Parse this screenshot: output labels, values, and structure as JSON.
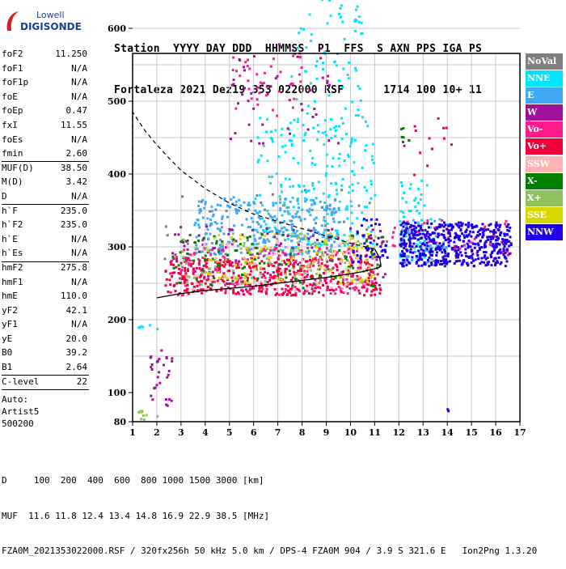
{
  "logo": {
    "line1": "Lowell",
    "line2": "DIGISONDE"
  },
  "header": {
    "labels": [
      "Station",
      "YYYY DAY",
      "DDD",
      "HHMMSS",
      "P1",
      "FFS",
      "S",
      "AXN",
      "PPS",
      "IGA",
      "PS"
    ],
    "values": [
      "Fortaleza",
      "2021 Dez19",
      "353",
      "022000",
      "RSF",
      "1",
      "714",
      "100",
      "10+",
      "11"
    ]
  },
  "parameters": [
    {
      "name": "foF2",
      "value": "11.250"
    },
    {
      "name": "foF1",
      "value": "N/A"
    },
    {
      "name": "foF1p",
      "value": "N/A"
    },
    {
      "name": "foE",
      "value": "N/A"
    },
    {
      "name": "foEp",
      "value": "0.47"
    },
    {
      "name": "fxI",
      "value": "11.55"
    },
    {
      "name": "foEs",
      "value": "N/A"
    },
    {
      "name": "fmin",
      "value": "2.60"
    },
    {
      "name": "MUF(D)",
      "value": "38.50"
    },
    {
      "name": "M(D)",
      "value": "3.42"
    },
    {
      "name": "D",
      "value": "N/A"
    },
    {
      "name": "h`F",
      "value": "235.0"
    },
    {
      "name": "h`F2",
      "value": "235.0"
    },
    {
      "name": "h`E",
      "value": "N/A"
    },
    {
      "name": "h`Es",
      "value": "N/A"
    },
    {
      "name": "hmF2",
      "value": "275.8"
    },
    {
      "name": "hmF1",
      "value": "N/A"
    },
    {
      "name": "hmE",
      "value": "110.0"
    },
    {
      "name": "yF2",
      "value": "42.1"
    },
    {
      "name": "yF1",
      "value": "N/A"
    },
    {
      "name": "yE",
      "value": "20.0"
    },
    {
      "name": "B0",
      "value": "39.2"
    },
    {
      "name": "B1",
      "value": "2.64"
    },
    {
      "name": "C-level",
      "value": "22"
    }
  ],
  "auto": [
    "Auto:",
    "Artist5",
    "500200"
  ],
  "legend": [
    {
      "label": "NoVal",
      "color": "#7f7f7f"
    },
    {
      "label": "NNE",
      "color": "#00e5ff"
    },
    {
      "label": "E",
      "color": "#3fa9f5"
    },
    {
      "label": "W",
      "color": "#a0109a"
    },
    {
      "label": "Vo-",
      "color": "#ff1b8c"
    },
    {
      "label": "Vo+",
      "color": "#f0003a"
    },
    {
      "label": "SSW",
      "color": "#ffb3b3"
    },
    {
      "label": "X-",
      "color": "#007f00"
    },
    {
      "label": "X+",
      "color": "#8fc25f"
    },
    {
      "label": "SSE",
      "color": "#d8d800"
    },
    {
      "label": "NNW",
      "color": "#1f00e6"
    }
  ],
  "footer": {
    "dist_label": "D",
    "dist_values": [
      "100",
      "200",
      "400",
      "600",
      "800",
      "1000",
      "1500",
      "3000"
    ],
    "dist_unit": "[km]",
    "muf_label": "MUF",
    "muf_values": [
      "11.6",
      "11.8",
      "12.4",
      "13.4",
      "14.8",
      "16.9",
      "22.9",
      "38.5"
    ],
    "muf_unit": "[MHz]",
    "info": "FZA0M_2021353022000.RSF / 320fx256h 50 kHz 5.0 km / DPS-4 FZA0M 904 / 3.9 S 321.6 E   Ion2Png 1.3.20"
  },
  "chart_data": {
    "type": "scatter",
    "x_ticks": [
      "1",
      "2",
      "3",
      "4",
      "5",
      "6",
      "7",
      "8",
      "9",
      "10",
      "11",
      "12",
      "13",
      "14",
      "15",
      "16",
      "17"
    ],
    "y_ticks": [
      "80",
      "100",
      "200",
      "300",
      "400",
      "500",
      "600",
      "700",
      "800",
      "900"
    ],
    "xlim": [
      1,
      17
    ],
    "ylim": [
      80,
      900
    ],
    "grid": true,
    "legend_position": "right",
    "profile": {
      "x": [
        2.0,
        3.0,
        4.0,
        5.0,
        6.0,
        7.0,
        8.0,
        9.0,
        10.0,
        10.5,
        11.0,
        11.2,
        11.25,
        11.2,
        11.0
      ],
      "y": [
        230,
        236,
        240,
        243,
        246,
        250,
        254,
        258,
        263,
        266,
        270,
        272,
        276,
        285,
        297
      ]
    },
    "extrapolation": {
      "x": [
        1.0,
        1.0,
        1.5,
        2.0,
        2.5,
        3.0,
        4.0,
        5.0,
        6.0,
        7.0,
        8.0,
        9.0,
        10.0,
        11.0
      ],
      "y": [
        213,
        485,
        460,
        440,
        422,
        405,
        380,
        360,
        345,
        335,
        325,
        315,
        305,
        297
      ]
    },
    "series": [
      {
        "name": "NoVal",
        "clusters": [
          {
            "x": [
              2.2,
              11.5
            ],
            "y": [
              240,
              380
            ],
            "n": 60
          }
        ]
      },
      {
        "name": "NNE",
        "clusters": [
          {
            "x": [
              6.0,
              11.0
            ],
            "y": [
              300,
              480
            ],
            "n": 220
          },
          {
            "x": [
              7.5,
              10.5
            ],
            "y": [
              480,
              660
            ],
            "n": 70
          },
          {
            "x": [
              12.0,
              13.5
            ],
            "y": [
              280,
              400
            ],
            "n": 60
          },
          {
            "x": [
              1.0,
              2.0
            ],
            "y": [
              185,
              195
            ],
            "n": 6
          }
        ]
      },
      {
        "name": "E",
        "clusters": [
          {
            "x": [
              3.5,
              9.5
            ],
            "y": [
              290,
              370
            ],
            "n": 320
          },
          {
            "x": [
              12.0,
              14.0
            ],
            "y": [
              280,
              340
            ],
            "n": 60
          }
        ]
      },
      {
        "name": "W",
        "clusters": [
          {
            "x": [
              2.5,
              11.5
            ],
            "y": [
              240,
              330
            ],
            "n": 160
          },
          {
            "x": [
              5.0,
              9.5
            ],
            "y": [
              430,
              580
            ],
            "n": 50
          },
          {
            "x": [
              1.6,
              2.6
            ],
            "y": [
              90,
              160
            ],
            "n": 30
          }
        ]
      },
      {
        "name": "Vo-",
        "clusters": [
          {
            "x": [
              2.5,
              11.0
            ],
            "y": [
              235,
              300
            ],
            "n": 240
          },
          {
            "x": [
              5.0,
              8.0
            ],
            "y": [
              480,
              570
            ],
            "n": 40
          },
          {
            "x": [
              11.6,
              16.6
            ],
            "y": [
              290,
              340
            ],
            "n": 50
          }
        ]
      },
      {
        "name": "Vo+",
        "clusters": [
          {
            "x": [
              2.3,
              11.2
            ],
            "y": [
              235,
              285
            ],
            "n": 360
          },
          {
            "x": [
              12.0,
              14.2
            ],
            "y": [
              400,
              480
            ],
            "n": 14
          }
        ]
      },
      {
        "name": "SSW",
        "clusters": [
          {
            "x": [
              3.0,
              10.5
            ],
            "y": [
              240,
              310
            ],
            "n": 80
          }
        ]
      },
      {
        "name": "X-",
        "clusters": [
          {
            "x": [
              2.5,
              11.5
            ],
            "y": [
              245,
              320
            ],
            "n": 90
          },
          {
            "x": [
              12.0,
              13.0
            ],
            "y": [
              440,
              470
            ],
            "n": 6
          }
        ]
      },
      {
        "name": "X+",
        "clusters": [
          {
            "x": [
              3.0,
              11.0
            ],
            "y": [
              250,
              320
            ],
            "n": 90
          },
          {
            "x": [
              1.2,
              2.0
            ],
            "y": [
              82,
              90
            ],
            "n": 10
          }
        ]
      },
      {
        "name": "SSE",
        "clusters": [
          {
            "x": [
              4.0,
              11.0
            ],
            "y": [
              250,
              320
            ],
            "n": 110
          }
        ]
      },
      {
        "name": "NNW",
        "clusters": [
          {
            "x": [
              12.0,
              16.6
            ],
            "y": [
              275,
              335
            ],
            "n": 520
          },
          {
            "x": [
              10.0,
              11.5
            ],
            "y": [
              280,
              340
            ],
            "n": 40
          },
          {
            "x": [
              13.8,
              14.0
            ],
            "y": [
              88,
              90
            ],
            "n": 2
          }
        ]
      }
    ]
  }
}
